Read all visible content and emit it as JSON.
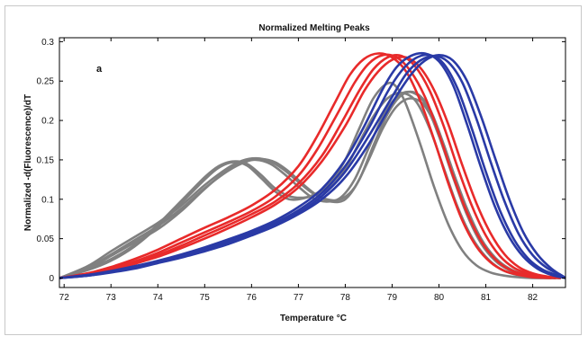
{
  "chart_data": {
    "type": "line",
    "title": "Normalized Melting Peaks",
    "xlabel": "Temperature",
    "xlabel_unit": "°C",
    "ylabel": "Normalized -d(Fluorescence)/dT",
    "annotation": "a",
    "xlim": [
      71.9,
      82.7
    ],
    "ylim": [
      -0.012,
      0.305
    ],
    "xticks": [
      72,
      73,
      74,
      75,
      76,
      77,
      78,
      79,
      80,
      81,
      82
    ],
    "yticks": [
      0,
      0.05,
      0.1,
      0.15,
      0.2,
      0.25,
      0.3
    ],
    "ytick_labels": [
      "0",
      "0.05",
      "0.1",
      "0.15",
      "0.2",
      "0.25",
      "0.3"
    ],
    "grid": false,
    "series": [
      {
        "color": "#808080",
        "curves": [
          {
            "x": [
              71.9,
              72.5,
              73.0,
              73.5,
              74.0,
              74.5,
              75.0,
              75.3,
              75.6,
              75.9,
              76.2,
              76.5,
              76.8,
              77.1,
              77.4,
              77.7,
              78.0,
              78.3,
              78.6,
              78.9,
              79.1,
              79.3,
              79.6,
              79.9,
              80.2,
              80.5,
              80.8,
              81.1,
              81.4,
              81.7,
              82.0,
              82.5
            ],
            "y": [
              0.0,
              0.01,
              0.022,
              0.04,
              0.065,
              0.095,
              0.125,
              0.14,
              0.147,
              0.143,
              0.127,
              0.11,
              0.1,
              0.101,
              0.108,
              0.122,
              0.15,
              0.19,
              0.228,
              0.247,
              0.242,
              0.22,
              0.17,
              0.115,
              0.068,
              0.035,
              0.016,
              0.007,
              0.003,
              0.001,
              0.0,
              0.0
            ]
          },
          {
            "x": [
              71.9,
              72.5,
              73.0,
              73.5,
              74.0,
              74.5,
              75.0,
              75.3,
              75.6,
              75.9,
              76.2,
              76.5,
              76.8,
              77.1,
              77.4,
              77.7,
              78.0,
              78.3,
              78.6,
              78.9,
              79.2,
              79.5,
              79.8,
              80.1,
              80.4,
              80.7,
              81.0,
              81.3,
              81.6,
              82.0,
              82.5
            ],
            "y": [
              0.0,
              0.011,
              0.024,
              0.042,
              0.068,
              0.098,
              0.128,
              0.142,
              0.148,
              0.145,
              0.131,
              0.114,
              0.104,
              0.102,
              0.106,
              0.116,
              0.138,
              0.172,
              0.205,
              0.228,
              0.235,
              0.225,
              0.19,
              0.14,
              0.09,
              0.052,
              0.027,
              0.012,
              0.005,
              0.001,
              0.0
            ]
          },
          {
            "x": [
              71.9,
              72.5,
              73.0,
              73.5,
              74.0,
              74.5,
              75.0,
              75.5,
              75.8,
              76.1,
              76.4,
              76.7,
              77.0,
              77.3,
              77.6,
              77.9,
              78.2,
              78.5,
              78.8,
              79.1,
              79.4,
              79.7,
              80.0,
              80.3,
              80.6,
              80.9,
              81.2,
              81.5,
              81.8,
              82.2,
              82.6
            ],
            "y": [
              0.0,
              0.012,
              0.028,
              0.045,
              0.062,
              0.085,
              0.113,
              0.138,
              0.147,
              0.15,
              0.145,
              0.132,
              0.116,
              0.102,
              0.097,
              0.102,
              0.125,
              0.165,
              0.205,
              0.23,
              0.236,
              0.222,
              0.18,
              0.128,
              0.08,
              0.044,
              0.022,
              0.01,
              0.004,
              0.001,
              0.0
            ]
          },
          {
            "x": [
              71.9,
              72.5,
              73.0,
              73.5,
              74.0,
              74.5,
              75.0,
              75.5,
              75.8,
              76.1,
              76.4,
              76.7,
              77.0,
              77.3,
              77.6,
              77.9,
              78.2,
              78.5,
              78.8,
              79.1,
              79.4,
              79.7,
              80.0,
              80.3,
              80.6,
              80.9,
              81.2,
              81.5,
              81.8,
              82.2,
              82.6
            ],
            "y": [
              0.0,
              0.015,
              0.034,
              0.052,
              0.07,
              0.092,
              0.118,
              0.14,
              0.149,
              0.152,
              0.148,
              0.137,
              0.122,
              0.108,
              0.1,
              0.1,
              0.115,
              0.15,
              0.19,
              0.218,
              0.228,
              0.218,
              0.183,
              0.135,
              0.088,
              0.05,
              0.026,
              0.012,
              0.005,
              0.001,
              0.0
            ]
          },
          {
            "x": [
              71.9,
              72.5,
              73.0,
              73.5,
              74.0,
              74.5,
              75.0,
              75.5,
              75.9,
              76.2,
              76.5,
              76.8,
              77.1,
              77.4,
              77.7,
              78.0,
              78.3,
              78.6,
              78.9,
              79.2,
              79.5,
              79.8,
              80.1,
              80.4,
              80.7,
              81.0,
              81.3,
              81.6,
              81.9,
              82.2,
              82.6
            ],
            "y": [
              0.0,
              0.013,
              0.03,
              0.048,
              0.066,
              0.088,
              0.114,
              0.136,
              0.148,
              0.151,
              0.147,
              0.135,
              0.119,
              0.105,
              0.097,
              0.1,
              0.125,
              0.168,
              0.208,
              0.232,
              0.235,
              0.215,
              0.17,
              0.118,
              0.072,
              0.04,
              0.02,
              0.009,
              0.004,
              0.001,
              0.0
            ]
          }
        ]
      },
      {
        "color": "#e82a2a",
        "curves": [
          {
            "x": [
              71.9,
              72.5,
              73.0,
              73.5,
              74.0,
              74.5,
              75.0,
              75.5,
              76.0,
              76.5,
              77.0,
              77.4,
              77.8,
              78.1,
              78.4,
              78.7,
              79.0,
              79.3,
              79.6,
              79.9,
              80.2,
              80.5,
              80.8,
              81.1,
              81.4,
              81.7,
              82.0,
              82.4
            ],
            "y": [
              0.0,
              0.006,
              0.014,
              0.024,
              0.036,
              0.05,
              0.064,
              0.077,
              0.092,
              0.112,
              0.142,
              0.18,
              0.225,
              0.258,
              0.278,
              0.285,
              0.28,
              0.262,
              0.225,
              0.175,
              0.12,
              0.073,
              0.04,
              0.02,
              0.009,
              0.004,
              0.001,
              0.0
            ]
          },
          {
            "x": [
              71.9,
              72.5,
              73.0,
              73.5,
              74.0,
              74.5,
              75.0,
              75.5,
              76.0,
              76.5,
              77.0,
              77.4,
              77.8,
              78.2,
              78.5,
              78.8,
              79.1,
              79.4,
              79.7,
              80.0,
              80.3,
              80.6,
              80.9,
              81.2,
              81.5,
              81.8,
              82.1,
              82.5
            ],
            "y": [
              0.0,
              0.005,
              0.012,
              0.021,
              0.032,
              0.045,
              0.058,
              0.071,
              0.085,
              0.103,
              0.13,
              0.163,
              0.205,
              0.248,
              0.272,
              0.283,
              0.28,
              0.262,
              0.23,
              0.183,
              0.13,
              0.083,
              0.047,
              0.024,
              0.011,
              0.005,
              0.002,
              0.0
            ]
          },
          {
            "x": [
              71.9,
              72.5,
              73.0,
              73.5,
              74.0,
              74.5,
              75.0,
              75.5,
              76.0,
              76.5,
              77.0,
              77.5,
              77.9,
              78.3,
              78.6,
              78.9,
              79.2,
              79.5,
              79.8,
              80.1,
              80.4,
              80.7,
              81.0,
              81.3,
              81.6,
              81.9,
              82.2,
              82.6
            ],
            "y": [
              0.0,
              0.005,
              0.011,
              0.019,
              0.029,
              0.041,
              0.054,
              0.067,
              0.081,
              0.097,
              0.12,
              0.155,
              0.195,
              0.238,
              0.265,
              0.28,
              0.282,
              0.268,
              0.238,
              0.193,
              0.14,
              0.092,
              0.054,
              0.028,
              0.013,
              0.006,
              0.002,
              0.0
            ]
          },
          {
            "x": [
              71.9,
              72.5,
              73.0,
              73.5,
              74.0,
              74.5,
              75.0,
              75.5,
              76.0,
              76.5,
              77.0,
              77.5,
              78.0,
              78.4,
              78.7,
              79.0,
              79.3,
              79.6,
              79.9,
              80.2,
              80.5,
              80.8,
              81.1,
              81.4,
              81.7,
              82.0,
              82.3,
              82.6
            ],
            "y": [
              0.0,
              0.004,
              0.01,
              0.018,
              0.027,
              0.038,
              0.05,
              0.063,
              0.077,
              0.093,
              0.115,
              0.148,
              0.193,
              0.237,
              0.262,
              0.277,
              0.28,
              0.267,
              0.238,
              0.195,
              0.143,
              0.095,
              0.057,
              0.03,
              0.014,
              0.006,
              0.002,
              0.0
            ]
          }
        ]
      },
      {
        "color": "#2a3aa6",
        "curves": [
          {
            "x": [
              71.9,
              72.5,
              73.0,
              73.5,
              74.0,
              74.5,
              75.0,
              75.5,
              76.0,
              76.5,
              77.0,
              77.5,
              78.0,
              78.4,
              78.8,
              79.1,
              79.4,
              79.7,
              80.0,
              80.3,
              80.6,
              80.9,
              81.2,
              81.5,
              81.8,
              82.1,
              82.4,
              82.7
            ],
            "y": [
              0.0,
              0.004,
              0.009,
              0.015,
              0.022,
              0.03,
              0.039,
              0.049,
              0.06,
              0.073,
              0.09,
              0.113,
              0.15,
              0.192,
              0.24,
              0.268,
              0.282,
              0.285,
              0.275,
              0.245,
              0.195,
              0.14,
              0.09,
              0.052,
              0.027,
              0.012,
              0.004,
              0.0
            ]
          },
          {
            "x": [
              71.9,
              72.5,
              73.0,
              73.5,
              74.0,
              74.5,
              75.0,
              75.5,
              76.0,
              76.5,
              77.0,
              77.5,
              78.0,
              78.5,
              78.9,
              79.2,
              79.5,
              79.8,
              80.1,
              80.4,
              80.7,
              81.0,
              81.3,
              81.6,
              81.9,
              82.2,
              82.5,
              82.7
            ],
            "y": [
              0.0,
              0.004,
              0.008,
              0.014,
              0.021,
              0.028,
              0.037,
              0.047,
              0.058,
              0.07,
              0.086,
              0.108,
              0.142,
              0.19,
              0.236,
              0.263,
              0.279,
              0.283,
              0.272,
              0.24,
              0.19,
              0.135,
              0.086,
              0.049,
              0.025,
              0.011,
              0.004,
              0.0
            ]
          },
          {
            "x": [
              71.9,
              72.5,
              73.0,
              73.5,
              74.0,
              74.5,
              75.0,
              75.5,
              76.0,
              76.5,
              77.0,
              77.5,
              78.0,
              78.5,
              79.0,
              79.3,
              79.6,
              79.9,
              80.2,
              80.5,
              80.8,
              81.1,
              81.4,
              81.7,
              82.0,
              82.3,
              82.6,
              82.7
            ],
            "y": [
              0.0,
              0.003,
              0.008,
              0.013,
              0.02,
              0.027,
              0.035,
              0.045,
              0.056,
              0.068,
              0.083,
              0.104,
              0.135,
              0.18,
              0.23,
              0.259,
              0.276,
              0.282,
              0.274,
              0.248,
              0.202,
              0.148,
              0.097,
              0.056,
              0.029,
              0.013,
              0.004,
              0.0
            ]
          },
          {
            "x": [
              71.9,
              72.5,
              73.0,
              73.5,
              74.0,
              74.5,
              75.0,
              75.5,
              76.0,
              76.5,
              77.0,
              77.5,
              78.0,
              78.5,
              79.0,
              79.4,
              79.7,
              80.0,
              80.3,
              80.6,
              80.9,
              81.2,
              81.5,
              81.8,
              82.1,
              82.4,
              82.7
            ],
            "y": [
              0.0,
              0.003,
              0.007,
              0.012,
              0.019,
              0.026,
              0.034,
              0.043,
              0.054,
              0.066,
              0.081,
              0.1,
              0.128,
              0.17,
              0.222,
              0.258,
              0.276,
              0.283,
              0.276,
              0.25,
              0.205,
              0.152,
              0.1,
              0.058,
              0.03,
              0.012,
              0.0
            ]
          }
        ]
      }
    ]
  }
}
